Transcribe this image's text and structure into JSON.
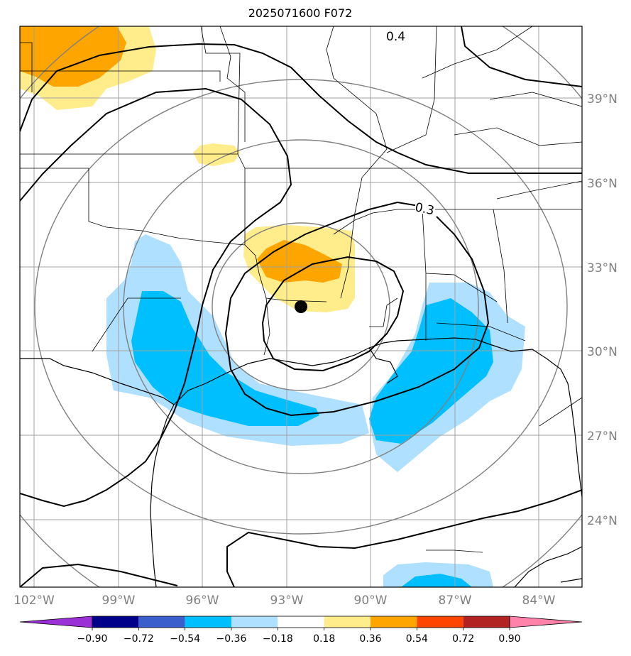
{
  "title": "2025071600 F072",
  "lat_labels": [
    "39°N",
    "36°N",
    "33°N",
    "30°N",
    "27°N",
    "24°N"
  ],
  "lon_labels": [
    "102°W",
    "99°W",
    "96°W",
    "93°W",
    "90°W",
    "87°W",
    "84°W"
  ],
  "contour_labels": [
    "0.4",
    "0.3"
  ],
  "colorbar": {
    "ticks": [
      "−0.90",
      "−0.72",
      "−0.54",
      "−0.36",
      "−0.18",
      "0.18",
      "0.36",
      "0.54",
      "0.72",
      "0.90"
    ],
    "colors": [
      "#9b30d6",
      "#00008b",
      "#3a5fcd",
      "#00bfff",
      "#b0e0ff",
      "#ffffff",
      "#ffec8b",
      "#ffa500",
      "#ff4500",
      "#b22222",
      "#ff82ab"
    ]
  },
  "fill_colors": {
    "light_blue": "#b0e0ff",
    "blue": "#00bfff",
    "light_yellow": "#ffec8b",
    "orange": "#ffa500"
  },
  "marker": {
    "name": "storm-center",
    "lat": 31.6,
    "lon": -92.2
  }
}
